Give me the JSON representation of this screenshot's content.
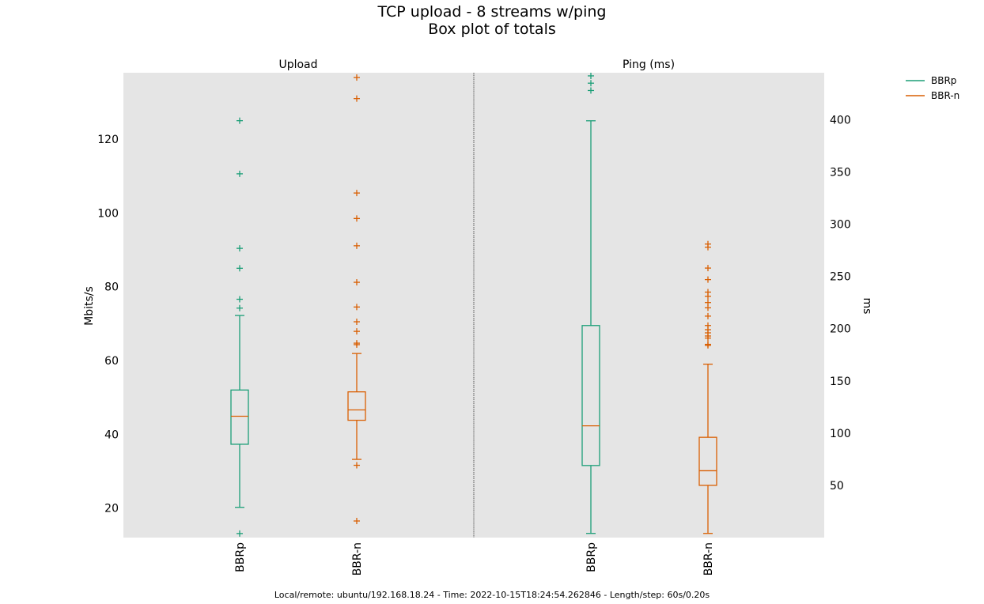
{
  "title": "TCP upload - 8 streams w/ping",
  "subtitle": "Box plot of totals",
  "footer": "Local/remote: ubuntu/192.168.18.24 - Time: 2022-10-15T18:24:54.262846 - Length/step: 60s/0.20s",
  "legend": {
    "position": "top-right-outside",
    "entries": [
      {
        "name": "BBRp",
        "color": "#1b9e77"
      },
      {
        "name": "BBR-n",
        "color": "#d95f02"
      }
    ]
  },
  "colors": {
    "BBRp": "#1b9e77",
    "BBR-n": "#d95f02",
    "median": "#d95f02",
    "panel_bg": "#e5e5e5"
  },
  "chart_data": [
    {
      "type": "box",
      "title": "Upload",
      "ylabel": "Mbits/s",
      "ylim": [
        12,
        138
      ],
      "yticks": [
        20,
        40,
        60,
        80,
        100,
        120
      ],
      "grid": false,
      "categories": [
        "BBRp",
        "BBR-n"
      ],
      "series": [
        {
          "name": "BBRp",
          "whisker_low": 20.2,
          "q1": 37.3,
          "median": 44.9,
          "q3": 52.0,
          "whisker_high": 72.2,
          "outliers": [
            13.1,
            74.2,
            76.6,
            85.0,
            90.4,
            110.6,
            125.0
          ]
        },
        {
          "name": "BBR-n",
          "whisker_low": 33.2,
          "q1": 43.8,
          "median": 46.6,
          "q3": 51.5,
          "whisker_high": 61.9,
          "outliers": [
            16.5,
            31.6,
            64.3,
            64.7,
            67.9,
            70.5,
            74.5,
            81.2,
            91.1,
            98.5,
            105.4,
            131.0,
            136.7
          ]
        }
      ]
    },
    {
      "type": "box",
      "title": "Ping (ms)",
      "ylabel": "ms",
      "ylim": [
        0,
        445
      ],
      "yticks": [
        50,
        100,
        150,
        200,
        250,
        300,
        350,
        400
      ],
      "grid": false,
      "categories": [
        "BBRp",
        "BBR-n"
      ],
      "series": [
        {
          "name": "BBRp",
          "whisker_low": 4,
          "q1": 69,
          "median": 107,
          "q3": 203,
          "whisker_high": 399,
          "outliers": [
            428,
            435,
            442
          ]
        },
        {
          "name": "BBR-n",
          "whisker_low": 4,
          "q1": 50,
          "median": 64,
          "q3": 96,
          "whisker_high": 166,
          "outliers": [
            184,
            185,
            191,
            193,
            196,
            199,
            203,
            212,
            220,
            225,
            231,
            235,
            247,
            258,
            278,
            281
          ]
        }
      ]
    }
  ]
}
